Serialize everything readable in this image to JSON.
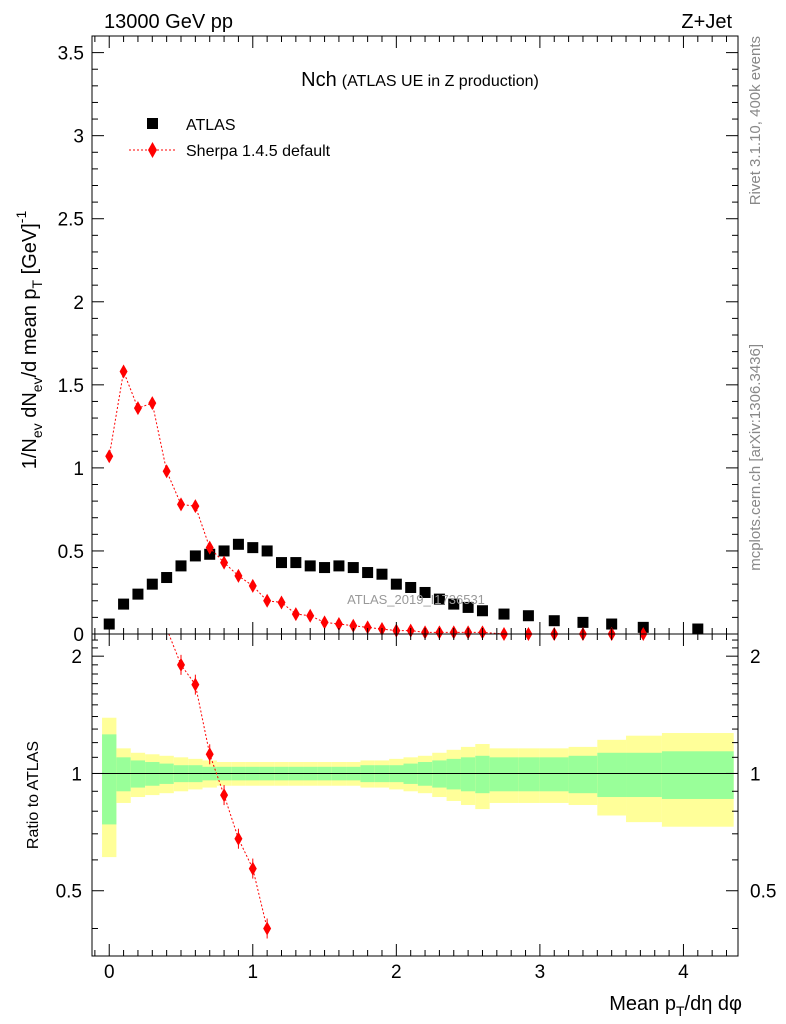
{
  "header": {
    "left": "13000 GeV pp",
    "right": "Z+Jet"
  },
  "side_labels": {
    "rivet": "Rivet 3.1.10,  400k events",
    "mcplots": "mcplots.cern.ch [arXiv:1306.3436]"
  },
  "chart_data": [
    {
      "type": "scatter",
      "title_main": "Nch",
      "title_sub": "(ATLAS UE in Z production)",
      "watermark": "ATLAS_2019_I1736531",
      "xlabel": "Mean p_T/dη dφ",
      "ylabel": "1/N_ev dN_ev/d mean p_T [GeV]^-1",
      "xlim": [
        -0.12,
        4.38
      ],
      "ylim": [
        0,
        3.6
      ],
      "y_ticks": [
        0,
        0.5,
        1,
        1.5,
        2,
        2.5,
        3,
        3.5
      ],
      "y_tick_labels": [
        "0",
        "0.5",
        "1",
        "1.5",
        "2",
        "2.5",
        "3",
        "3.5"
      ],
      "x_ticks": [
        0,
        1,
        2,
        3,
        4
      ],
      "legend_position": "top-left",
      "series": [
        {
          "name": "ATLAS",
          "color": "#000000",
          "marker": "square",
          "x": [
            0.0,
            0.1,
            0.2,
            0.3,
            0.4,
            0.5,
            0.6,
            0.7,
            0.8,
            0.9,
            1.0,
            1.1,
            1.2,
            1.3,
            1.4,
            1.5,
            1.6,
            1.7,
            1.8,
            1.9,
            2.0,
            2.1,
            2.2,
            2.3,
            2.4,
            2.5,
            2.6,
            2.75,
            2.92,
            3.1,
            3.3,
            3.5,
            3.72,
            4.1
          ],
          "y": [
            0.06,
            0.18,
            0.24,
            0.3,
            0.34,
            0.41,
            0.47,
            0.48,
            0.5,
            0.54,
            0.52,
            0.5,
            0.43,
            0.43,
            0.41,
            0.4,
            0.41,
            0.4,
            0.37,
            0.36,
            0.3,
            0.28,
            0.25,
            0.21,
            0.18,
            0.16,
            0.14,
            0.12,
            0.11,
            0.08,
            0.07,
            0.06,
            0.04,
            0.03
          ]
        },
        {
          "name": "Sherpa 1.4.5 default",
          "color": "#ff0000",
          "marker": "diamond",
          "x": [
            0.0,
            0.1,
            0.2,
            0.3,
            0.4,
            0.5,
            0.6,
            0.7,
            0.8,
            0.9,
            1.0,
            1.1,
            1.2,
            1.3,
            1.4,
            1.5,
            1.6,
            1.7,
            1.8,
            1.9,
            2.0,
            2.1,
            2.2,
            2.3,
            2.4,
            2.5,
            2.6,
            2.75,
            2.92,
            3.1,
            3.3,
            3.5,
            3.72
          ],
          "y": [
            1.07,
            1.58,
            1.36,
            1.39,
            0.98,
            0.78,
            0.77,
            0.52,
            0.43,
            0.35,
            0.29,
            0.2,
            0.19,
            0.12,
            0.11,
            0.07,
            0.06,
            0.05,
            0.04,
            0.03,
            0.02,
            0.02,
            0.01,
            0.01,
            0.01,
            0.01,
            0.01,
            0.0,
            0.0,
            0.0,
            0.0,
            0.0,
            0.0
          ]
        }
      ]
    },
    {
      "type": "scatter",
      "ylabel": "Ratio to ATLAS",
      "xlim": [
        -0.12,
        4.38
      ],
      "ylim": [
        0.34,
        2.28
      ],
      "y_ticks": [
        0.5,
        1,
        2
      ],
      "y_tick_labels": [
        "0.5",
        "1",
        "2"
      ],
      "x_ticks": [
        0,
        1,
        2,
        3,
        4
      ],
      "x_tick_labels": [
        "0",
        "1",
        "2",
        "3",
        "4"
      ],
      "reference_line": 1,
      "band_edges": [
        -0.05,
        0.05,
        0.15,
        0.25,
        0.35,
        0.45,
        0.55,
        0.65,
        0.75,
        0.85,
        0.95,
        1.05,
        1.15,
        1.25,
        1.35,
        1.45,
        1.55,
        1.65,
        1.75,
        1.85,
        1.95,
        2.05,
        2.15,
        2.25,
        2.35,
        2.45,
        2.55,
        2.65,
        2.85,
        3.0,
        3.2,
        3.4,
        3.6,
        3.85,
        4.35
      ],
      "band_outer": [
        0.39,
        0.16,
        0.13,
        0.12,
        0.11,
        0.1,
        0.09,
        0.08,
        0.07,
        0.07,
        0.07,
        0.07,
        0.07,
        0.07,
        0.07,
        0.07,
        0.07,
        0.07,
        0.08,
        0.08,
        0.09,
        0.1,
        0.11,
        0.13,
        0.15,
        0.17,
        0.19,
        0.16,
        0.16,
        0.16,
        0.17,
        0.22,
        0.25,
        0.27,
        0.28
      ],
      "band_inner": [
        0.26,
        0.1,
        0.08,
        0.07,
        0.06,
        0.05,
        0.05,
        0.04,
        0.04,
        0.04,
        0.04,
        0.04,
        0.04,
        0.04,
        0.04,
        0.04,
        0.04,
        0.04,
        0.05,
        0.05,
        0.05,
        0.06,
        0.07,
        0.08,
        0.09,
        0.1,
        0.11,
        0.1,
        0.1,
        0.1,
        0.11,
        0.13,
        0.13,
        0.14,
        0.14
      ],
      "band_outer_color": "#ffff99",
      "band_inner_color": "#99ff99",
      "series": [
        {
          "name": "Sherpa 1.4.5 default / ATLAS",
          "color": "#ff0000",
          "marker": "diamond",
          "x": [
            0.5,
            0.6,
            0.7,
            0.8,
            0.9,
            1.0,
            1.1
          ],
          "y": [
            1.9,
            1.69,
            1.12,
            0.88,
            0.68,
            0.57,
            0.4
          ]
        }
      ]
    }
  ]
}
